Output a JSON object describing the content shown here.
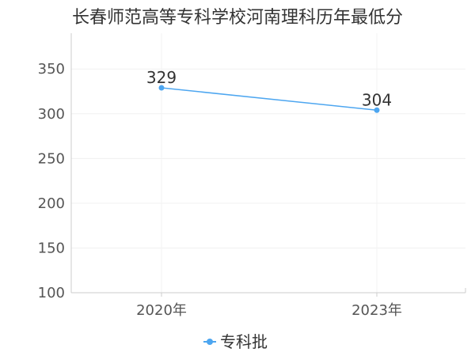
{
  "chart_data": {
    "type": "line",
    "title": "长春师范高等专科学校河南理科历年最低分",
    "categories": [
      "2020年",
      "2023年"
    ],
    "series": [
      {
        "name": "专科批",
        "values": [
          329,
          304
        ],
        "color": "#4da6f0"
      }
    ],
    "yticks": [
      100,
      150,
      200,
      250,
      300,
      350
    ],
    "ylim": [
      100,
      390
    ],
    "grid": true,
    "legend_position": "bottom-center"
  }
}
